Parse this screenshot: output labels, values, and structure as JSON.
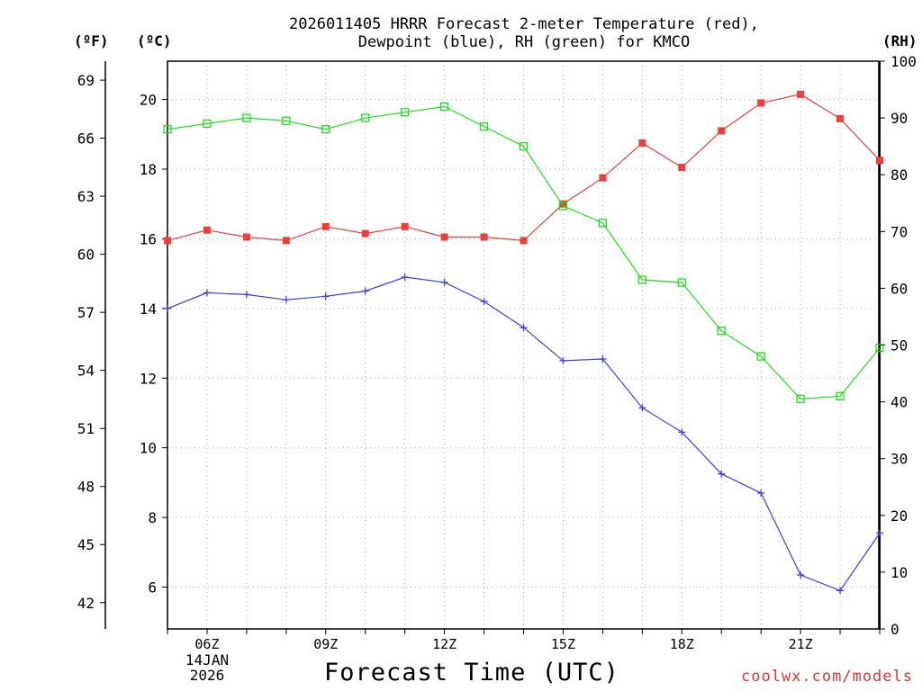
{
  "title": {
    "line1": "2026011405 HRRR Forecast 2-meter Temperature (red),",
    "line2": "Dewpoint (blue), RH (green) for KMCO"
  },
  "units": {
    "left_f": "(ºF)",
    "left_c": "(ºC)",
    "right_rh": "(RH)"
  },
  "xaxis": {
    "label": "Forecast Time (UTC)",
    "ticks": [
      {
        "hour": 6,
        "label": "06Z"
      },
      {
        "hour": 9,
        "label": "09Z"
      },
      {
        "hour": 12,
        "label": "12Z"
      },
      {
        "hour": 15,
        "label": "15Z"
      },
      {
        "hour": 18,
        "label": "18Z"
      },
      {
        "hour": 21,
        "label": "21Z"
      }
    ],
    "date_line1": "14JAN",
    "date_line2": "2026"
  },
  "credit": "coolwx.com/models",
  "colors": {
    "temperature": "#f03c3c",
    "dewpoint": "#3c3cf0",
    "rh": "#1ee01e",
    "grid": "#b4b4b4"
  },
  "chart_data": {
    "type": "line",
    "x_hours": [
      5,
      6,
      7,
      8,
      9,
      10,
      11,
      12,
      13,
      14,
      15,
      16,
      17,
      18,
      19,
      20,
      21,
      22,
      23
    ],
    "xlim": [
      5,
      23
    ],
    "ylim_c": [
      4.8,
      21.1
    ],
    "ylim_f": [
      40.64,
      69.98
    ],
    "ylim_rh": [
      0,
      100
    ],
    "y_ticks_c": [
      6,
      8,
      10,
      12,
      14,
      16,
      18,
      20
    ],
    "y_ticks_f": [
      42,
      45,
      48,
      51,
      54,
      57,
      60,
      63,
      66,
      69
    ],
    "y_ticks_rh": [
      0,
      10,
      20,
      30,
      40,
      50,
      60,
      70,
      80,
      90,
      100
    ],
    "series": [
      {
        "name": "Temperature (red)",
        "axis": "c",
        "marker": "square-filled",
        "values": [
          15.95,
          16.25,
          16.05,
          15.95,
          16.35,
          16.15,
          16.35,
          16.05,
          16.05,
          15.95,
          17.0,
          17.75,
          18.75,
          18.05,
          19.1,
          19.9,
          20.15,
          19.45,
          18.25
        ]
      },
      {
        "name": "Dewpoint (blue)",
        "axis": "c",
        "marker": "plus",
        "values": [
          14.0,
          14.45,
          14.4,
          14.25,
          14.35,
          14.5,
          14.9,
          14.75,
          14.2,
          13.45,
          12.5,
          12.55,
          11.15,
          10.45,
          9.25,
          8.7,
          6.35,
          5.9,
          7.55
        ]
      },
      {
        "name": "RH (green)",
        "axis": "rh",
        "marker": "square-open",
        "values": [
          88,
          89,
          90,
          89.5,
          88,
          90,
          91,
          92,
          88.5,
          85,
          74.5,
          71.5,
          61.5,
          61,
          52.5,
          48,
          40.5,
          41,
          49.5
        ]
      }
    ]
  }
}
